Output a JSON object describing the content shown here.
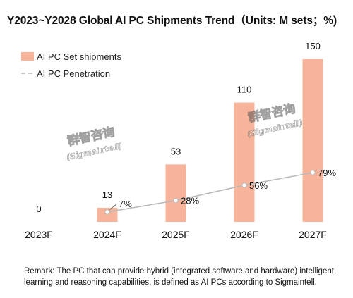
{
  "colors": {
    "bar": "#F8B49A",
    "line": "#B8B8B8",
    "marker_fill": "#FFFFFF",
    "text": "#111111"
  },
  "watermarks": [
    {
      "cn": "群智咨询",
      "en": "(Sigmaintell)"
    },
    {
      "cn": "群智咨询",
      "en": "(Sigmaintell)"
    }
  ],
  "remark": "Remark: The PC that can provide hybrid (integrated software and hardware) intelligent learning and reasoning capabilities, is defined as AI PCs according to Sigmaintell.",
  "chart_data": {
    "type": "bar+line",
    "title": "Y2023~Y2028 Global AI PC Shipments Trend（Units: M sets；%)",
    "categories": [
      "2023F",
      "2024F",
      "2025F",
      "2026F",
      "2027F"
    ],
    "series": [
      {
        "name": "AI PC Set shipments",
        "type": "bar",
        "values": [
          0,
          13,
          53,
          110,
          150
        ],
        "labels": [
          "0",
          "13",
          "53",
          "110",
          "150"
        ]
      },
      {
        "name": "AI PC Penetration",
        "type": "line",
        "x": [
          "2024F",
          "2025F",
          "2026F",
          "2027F"
        ],
        "values": [
          7,
          28,
          56,
          79
        ],
        "labels": [
          "7%",
          "28%",
          "56%",
          "79%"
        ]
      }
    ],
    "legend": "top-left",
    "grid": false,
    "ylim_bar": [
      0,
      150
    ]
  }
}
